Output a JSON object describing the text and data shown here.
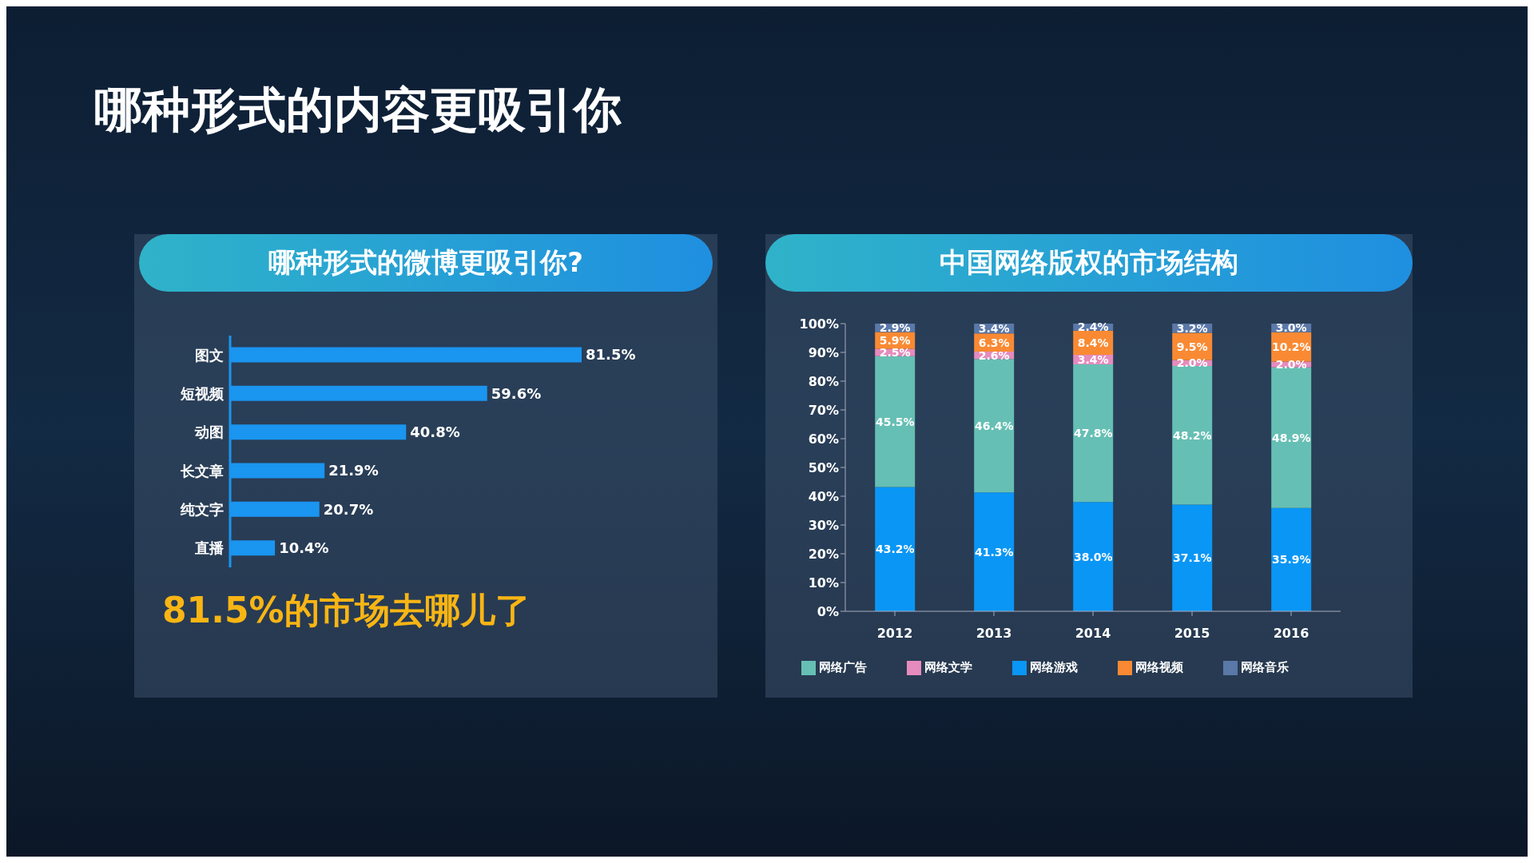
{
  "chart_data": [
    {
      "type": "bar",
      "orientation": "horizontal",
      "title": "哪种形式的微博更吸引你?",
      "annotations": [
        "哪种形式的内容更吸引你",
        "81.5%的市场去哪儿了"
      ],
      "categories": [
        "图文",
        "短视频",
        "动图",
        "长文章",
        "纯文字",
        "直播"
      ],
      "values": [
        81.5,
        59.6,
        40.8,
        21.9,
        20.7,
        10.4
      ],
      "value_labels": [
        "81.5%",
        "59.6%",
        "40.8%",
        "21.9%",
        "20.7%",
        "10.4%"
      ],
      "color": "#1a95f0",
      "tick_labels": "y"
    },
    {
      "type": "bar",
      "stacked": true,
      "title": "中国网络版权的市场结构",
      "categories": [
        "2012",
        "2013",
        "2014",
        "2015",
        "2016"
      ],
      "ylim": [
        0,
        100
      ],
      "yticks": [
        {
          "value": 0,
          "label": "0%"
        },
        {
          "value": 10,
          "label": "10%"
        },
        {
          "value": 20,
          "label": "20%"
        },
        {
          "value": 30,
          "label": "30%"
        },
        {
          "value": 40,
          "label": "40%"
        },
        {
          "value": 50,
          "label": "50%"
        },
        {
          "value": 60,
          "label": "60%"
        },
        {
          "value": 70,
          "label": "70%"
        },
        {
          "value": 80,
          "label": "80%"
        },
        {
          "value": 90,
          "label": "90%"
        },
        {
          "value": 100,
          "label": "100%"
        }
      ],
      "legend": "bottom",
      "series": [
        {
          "name": "网络游戏",
          "color": "#0a96f5",
          "values": [
            43.2,
            41.3,
            38.0,
            37.1,
            35.9
          ],
          "value_labels": [
            "43.2%",
            "41.3%",
            "38.0%",
            "37.1%",
            "35.9%"
          ]
        },
        {
          "name": "网络广告",
          "color": "#66bfb4",
          "values": [
            45.5,
            46.4,
            47.8,
            48.2,
            48.9
          ],
          "value_labels": [
            "45.5%",
            "46.4%",
            "47.8%",
            "48.2%",
            "48.9%"
          ]
        },
        {
          "name": "网络文学",
          "color": "#e58bbd",
          "values": [
            2.5,
            2.6,
            3.4,
            2.0,
            2.0
          ],
          "value_labels": [
            "2.5%",
            "2.6%",
            "3.4%",
            "2.0%",
            "2.0%"
          ]
        },
        {
          "name": "网络视频",
          "color": "#f98a33",
          "values": [
            5.9,
            6.3,
            8.4,
            9.5,
            10.2
          ],
          "value_labels": [
            "5.9%",
            "6.3%",
            "8.4%",
            "9.5%",
            "10.2%"
          ]
        },
        {
          "name": "网络音乐",
          "color": "#5a78a8",
          "values": [
            2.9,
            3.4,
            2.4,
            3.2,
            3.0
          ],
          "value_labels": [
            "2.9%",
            "3.4%",
            "2.4%",
            "3.2%",
            "3.0%"
          ]
        }
      ]
    }
  ]
}
